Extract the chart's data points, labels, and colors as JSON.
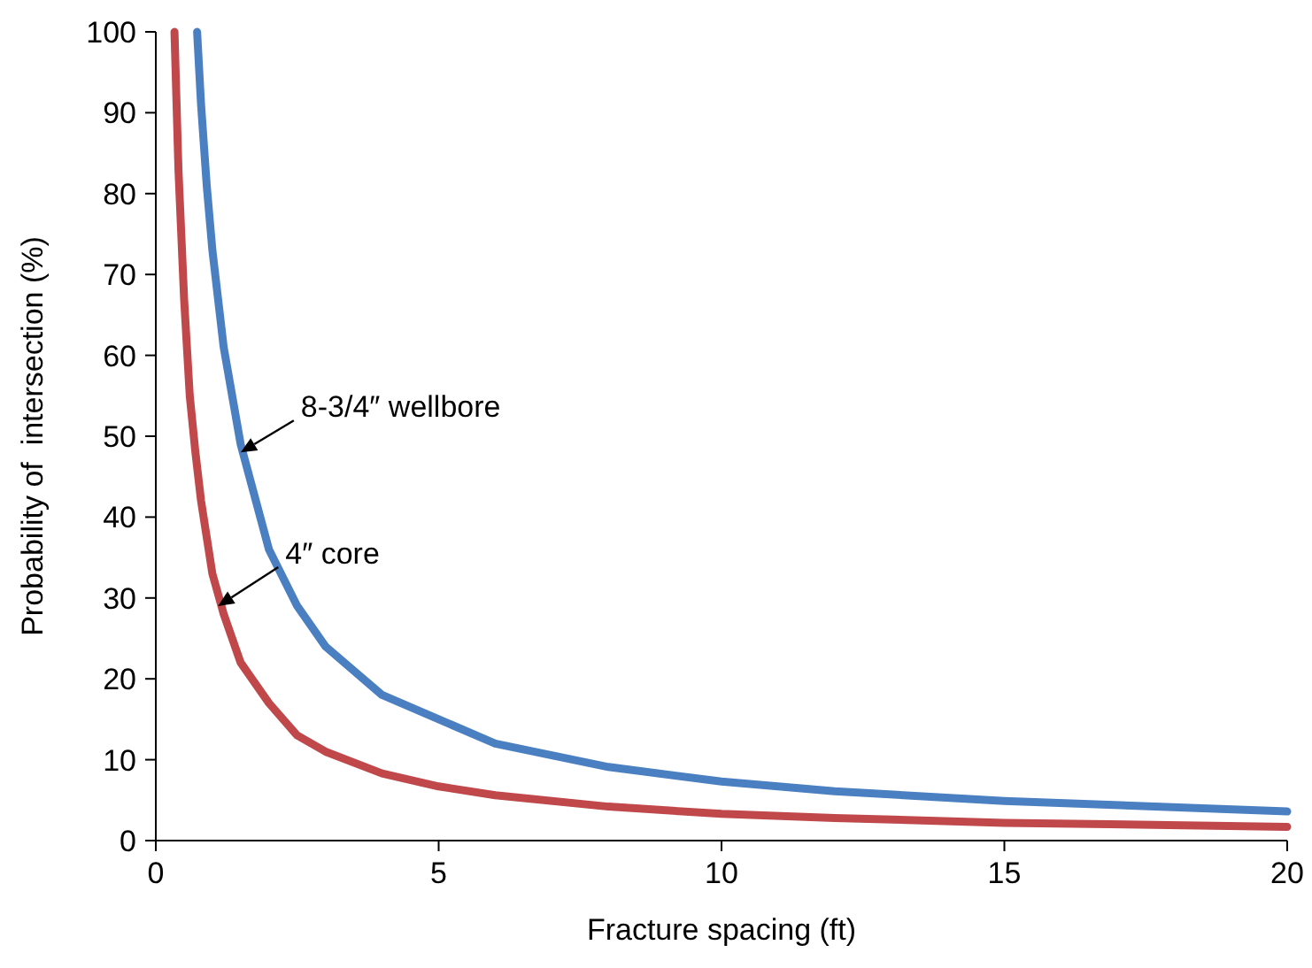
{
  "chart_data": {
    "type": "line",
    "xlabel": "Fracture spacing (ft)",
    "ylabel": "Probability of  intersection (%)",
    "xlim": [
      0,
      20
    ],
    "xticks": [
      0,
      5,
      10,
      15,
      20
    ],
    "ylim": [
      0,
      100
    ],
    "yticks": [
      0,
      10,
      20,
      30,
      40,
      50,
      60,
      70,
      80,
      90,
      100
    ],
    "grid": false,
    "marker": "none",
    "line_style": "solid",
    "series": [
      {
        "color": "#4a7fc1",
        "x": [
          0.73,
          0.8,
          0.9,
          1,
          1.2,
          1.5,
          2,
          2.5,
          3,
          4,
          5,
          6,
          8,
          10,
          12,
          15,
          20
        ],
        "values": [
          100,
          91,
          81,
          73,
          61,
          49,
          36,
          29,
          24,
          18,
          15,
          12,
          9.1,
          7.3,
          6.1,
          4.9,
          3.6
        ]
      },
      {
        "color": "#c0484a",
        "x": [
          0.33,
          0.4,
          0.5,
          0.6,
          0.7,
          0.8,
          1,
          1.2,
          1.5,
          2,
          2.5,
          3,
          4,
          5,
          6,
          8,
          10,
          12,
          15,
          20
        ],
        "values": [
          100,
          83,
          67,
          55,
          48,
          42,
          33,
          28,
          22,
          17,
          13,
          11,
          8.3,
          6.7,
          5.6,
          4.2,
          3.3,
          2.8,
          2.2,
          1.7
        ]
      }
    ],
    "annotations": [
      {
        "text": "8-3/4″ wellbore",
        "x": 1.5,
        "y": 48
      },
      {
        "text": "4″ core",
        "x": 1.1,
        "y": 29
      }
    ]
  }
}
